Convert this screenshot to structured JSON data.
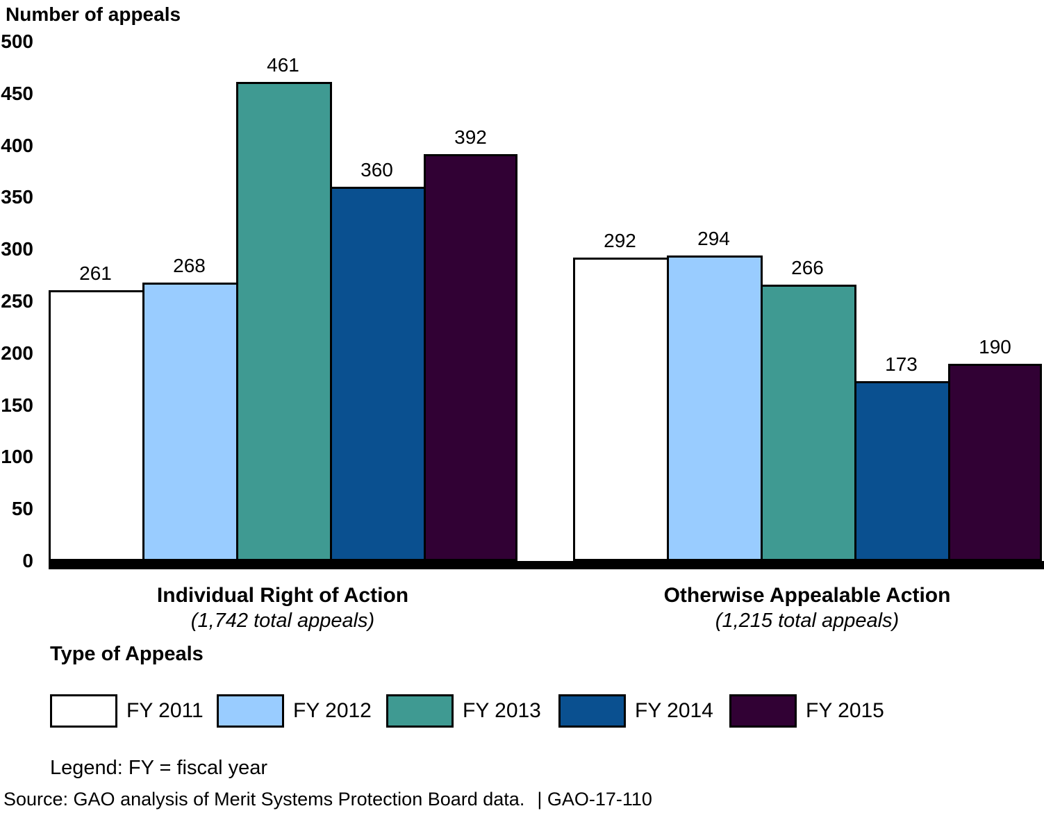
{
  "chart_data": {
    "type": "bar",
    "title": "Number of appeals",
    "ylabel": "Number of appeals",
    "ylim": [
      0,
      500
    ],
    "yticks": [
      0,
      50,
      100,
      150,
      200,
      250,
      300,
      350,
      400,
      450,
      500
    ],
    "grid": false,
    "legend_position": "bottom",
    "groups": [
      {
        "label": "Individual Right of Action",
        "sublabel": "(1,742 total appeals)"
      },
      {
        "label": "Otherwise Appealable Action",
        "sublabel": "(1,215 total appeals)"
      }
    ],
    "series": [
      {
        "name": "FY 2011",
        "color": "#FFFFFF",
        "values": [
          261,
          292
        ]
      },
      {
        "name": "FY 2012",
        "color": "#99CCFF",
        "values": [
          268,
          294
        ]
      },
      {
        "name": "FY 2013",
        "color": "#3F9A92",
        "values": [
          461,
          266
        ]
      },
      {
        "name": "FY 2014",
        "color": "#0A5090",
        "values": [
          360,
          173
        ]
      },
      {
        "name": "FY 2015",
        "color": "#310134",
        "values": [
          392,
          190
        ]
      }
    ]
  },
  "axis_title": "Number of appeals",
  "legend_title": "Type of Appeals",
  "legend_note": "Legend: FY = fiscal year",
  "source": "Source: GAO analysis of Merit Systems Protection Board data.",
  "report_number": "| GAO-17-110"
}
